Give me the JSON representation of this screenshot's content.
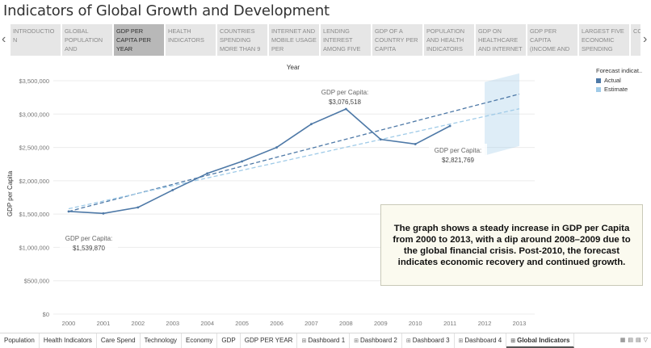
{
  "page": {
    "title": "Indicators of Global Growth and Development"
  },
  "nav": {
    "prev_icon": "chevron-left-icon",
    "next_icon": "chevron-right-icon"
  },
  "top_tabs": [
    "INTRODUCTIO N",
    "GLOBAL POPULATION AND",
    "GDP PER CAPITA PER YEAR",
    "HEALTH INDICATORS",
    "COUNTRIES SPENDING MORE THAN 9",
    "INTERNET AND MOBILE USAGE PER",
    "LENDING INTEREST AMONG FIVE",
    "GDP OF A COUNTRY PER CAPITA",
    "POPULATION AND HEALTH INDICATORS",
    "GDP ON HEALTHCARE AND INTERNET",
    "GDP PER CAPITA (INCOME AND",
    "LARGEST FIVE ECONOMIC SPENDING",
    "CO"
  ],
  "active_top_tab": 2,
  "legend": {
    "title": "Forecast indicat..",
    "items": [
      {
        "label": "Actual",
        "color": "#4e79a7"
      },
      {
        "label": "Estimate",
        "color": "#a0cbe8"
      }
    ]
  },
  "annotations": {
    "peak_label": "GDP per Capita:",
    "peak_value": "$3,076,518",
    "end_label": "GDP per Capita:",
    "end_value": "$2,821,769",
    "start_label": "GDP per Capita:",
    "start_value": "$1,539,870"
  },
  "note": "The graph shows a steady increase in GDP per Capita from 2000 to 2013, with a dip around 2008–2009 due to the global financial crisis. Post-2010, the forecast indicates economic recovery and continued growth.",
  "bottom_tabs": [
    {
      "label": "Population",
      "dashboard": false
    },
    {
      "label": "Health Indicators",
      "dashboard": false
    },
    {
      "label": "Care Spend",
      "dashboard": false
    },
    {
      "label": "Technology",
      "dashboard": false
    },
    {
      "label": "Economy",
      "dashboard": false
    },
    {
      "label": "GDP",
      "dashboard": false
    },
    {
      "label": "GDP PER YEAR",
      "dashboard": false
    },
    {
      "label": "Dashboard 1",
      "dashboard": true
    },
    {
      "label": "Dashboard 2",
      "dashboard": true
    },
    {
      "label": "Dashboard 3",
      "dashboard": true
    },
    {
      "label": "Dashboard 4",
      "dashboard": true
    },
    {
      "label": "Global Indicators",
      "dashboard": true,
      "active": true
    }
  ],
  "chart_data": {
    "type": "line",
    "title": "",
    "xlabel": "Year",
    "ylabel": "GDP per Capita",
    "x": [
      2000,
      2001,
      2002,
      2003,
      2004,
      2005,
      2006,
      2007,
      2008,
      2009,
      2010,
      2011,
      2012,
      2013
    ],
    "ylim": [
      0,
      3500000
    ],
    "yticks": [
      0,
      500000,
      1000000,
      1500000,
      2000000,
      2500000,
      3000000,
      3500000
    ],
    "ytick_labels": [
      "$0",
      "$500,000",
      "$1,000,000",
      "$1,500,000",
      "$2,000,000",
      "$2,500,000",
      "$3,000,000",
      "$3,500,000"
    ],
    "series": [
      {
        "name": "Actual",
        "color": "#4e79a7",
        "x": [
          2000,
          2001,
          2002,
          2003,
          2004,
          2005,
          2006,
          2007,
          2008,
          2009,
          2010,
          2011
        ],
        "values": [
          1539870,
          1510000,
          1600000,
          1860000,
          2110000,
          2290000,
          2500000,
          2850000,
          3076518,
          2620000,
          2550000,
          2821769
        ]
      }
    ],
    "trend_lines": [
      {
        "color": "#4e79a7",
        "x": [
          2000,
          2013
        ],
        "values": [
          1540000,
          3300000
        ]
      },
      {
        "color": "#a0cbe8",
        "x": [
          2000,
          2013
        ],
        "values": [
          1580000,
          3080000
        ]
      }
    ],
    "forecast_band": {
      "color": "#a0cbe8",
      "x": [
        2012,
        2013
      ],
      "lower": [
        2380000,
        2520000
      ],
      "upper": [
        3480000,
        3610000
      ]
    },
    "grid": true,
    "legend": "top-right"
  }
}
